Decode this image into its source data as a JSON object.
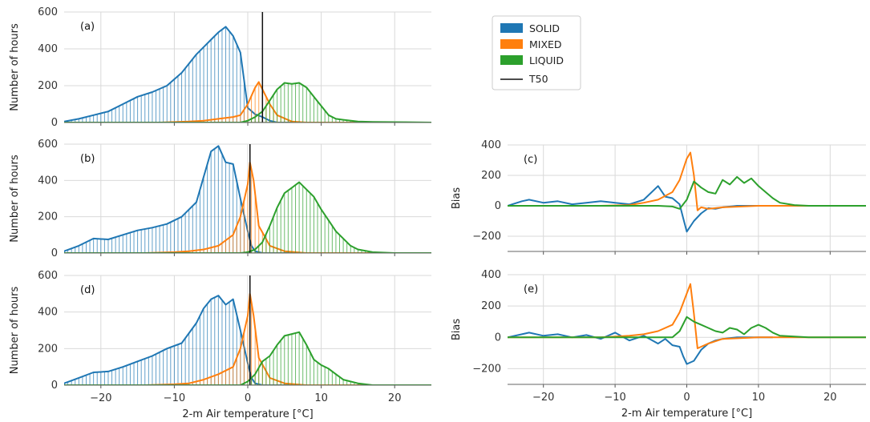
{
  "colors": {
    "solid": "#1f77b4",
    "mixed": "#ff7f0e",
    "liquid": "#2ca02c",
    "t50": "#111111",
    "grid": "#d9d9d9"
  },
  "legend": [
    "SOLID",
    "MIXED",
    "LIQUID",
    "T50"
  ],
  "chart_data": [
    {
      "panel": "(a)",
      "type": "area",
      "ylabel": "Number of hours",
      "xlabel": "",
      "xlim": [
        -25,
        25
      ],
      "ylim": [
        0,
        600
      ],
      "xticks": [
        "−20",
        "−10",
        "0",
        "10",
        "20"
      ],
      "show_xticklabels": false,
      "yticks": [
        "0",
        "200",
        "400",
        "600"
      ],
      "t50": 2,
      "series": [
        {
          "name": "SOLID",
          "x": [
            -25,
            -23,
            -21,
            -19,
            -17,
            -15,
            -13,
            -11,
            -9,
            -7,
            -5,
            -4,
            -3,
            -2,
            -1,
            0,
            1,
            2,
            3,
            4
          ],
          "values": [
            5,
            20,
            40,
            60,
            100,
            140,
            165,
            200,
            270,
            370,
            450,
            490,
            520,
            470,
            380,
            80,
            45,
            30,
            10,
            0
          ]
        },
        {
          "name": "MIXED",
          "x": [
            -12,
            -8,
            -6,
            -4,
            -2,
            -1,
            0,
            1,
            1.5,
            2,
            3,
            4,
            6,
            8
          ],
          "values": [
            0,
            5,
            10,
            20,
            30,
            40,
            100,
            190,
            220,
            180,
            100,
            40,
            5,
            0
          ]
        },
        {
          "name": "LIQUID",
          "x": [
            -1,
            0,
            1,
            2,
            3,
            4,
            5,
            6,
            7,
            8,
            9,
            10,
            11,
            12,
            13,
            15,
            17,
            20,
            25
          ],
          "values": [
            0,
            10,
            30,
            60,
            120,
            180,
            215,
            210,
            215,
            190,
            140,
            90,
            40,
            20,
            15,
            5,
            3,
            2,
            0
          ]
        }
      ]
    },
    {
      "panel": "(b)",
      "type": "area",
      "ylabel": "Number of hours",
      "xlabel": "",
      "xlim": [
        -25,
        25
      ],
      "ylim": [
        0,
        600
      ],
      "xticks": [
        "−20",
        "−10",
        "0",
        "10",
        "20"
      ],
      "show_xticklabels": false,
      "yticks": [
        "0",
        "200",
        "400",
        "600"
      ],
      "t50": 0.3,
      "series": [
        {
          "name": "SOLID",
          "x": [
            -25,
            -23,
            -21,
            -19,
            -17,
            -15,
            -13,
            -11,
            -9,
            -7,
            -6,
            -5,
            -4,
            -3,
            -2,
            -1,
            0,
            0.5,
            1,
            2
          ],
          "values": [
            10,
            40,
            80,
            75,
            100,
            125,
            140,
            160,
            200,
            280,
            420,
            560,
            590,
            500,
            490,
            300,
            120,
            40,
            10,
            0
          ]
        },
        {
          "name": "MIXED",
          "x": [
            -14,
            -10,
            -8,
            -6,
            -4,
            -2,
            -1,
            0,
            0.3,
            0.8,
            1.5,
            3,
            5,
            8
          ],
          "values": [
            0,
            5,
            10,
            20,
            40,
            100,
            200,
            380,
            500,
            400,
            150,
            40,
            10,
            0
          ]
        },
        {
          "name": "LIQUID",
          "x": [
            -1,
            0,
            1,
            2,
            3,
            4,
            5,
            6,
            7,
            8,
            9,
            10,
            11,
            12,
            13,
            14,
            15,
            17,
            20
          ],
          "values": [
            0,
            5,
            20,
            60,
            150,
            250,
            330,
            360,
            390,
            350,
            310,
            240,
            180,
            120,
            80,
            40,
            20,
            5,
            0
          ]
        }
      ]
    },
    {
      "panel": "(c)",
      "type": "line",
      "ylabel": "Bias",
      "xlabel": "",
      "xlim": [
        -25,
        25
      ],
      "ylim": [
        -300,
        400
      ],
      "xticks": [
        "−20",
        "−10",
        "0",
        "10",
        "20"
      ],
      "show_xticklabels": false,
      "yticks": [
        "−200",
        "0",
        "200",
        "400"
      ],
      "series": [
        {
          "name": "SOLID",
          "x": [
            -25,
            -23,
            -22,
            -20,
            -18,
            -16,
            -14,
            -12,
            -10,
            -8,
            -6,
            -4,
            -3,
            -2,
            -1,
            -0.5,
            0,
            1,
            2,
            3,
            4,
            5,
            7,
            9,
            12
          ],
          "values": [
            0,
            30,
            40,
            20,
            30,
            10,
            20,
            30,
            20,
            10,
            40,
            130,
            60,
            50,
            10,
            -80,
            -170,
            -100,
            -50,
            -15,
            -20,
            -10,
            0,
            0,
            0
          ]
        },
        {
          "name": "MIXED",
          "x": [
            -25,
            -12,
            -8,
            -6,
            -4,
            -2,
            -1,
            0,
            0.5,
            1,
            1.5,
            2,
            3,
            5,
            10,
            25
          ],
          "values": [
            0,
            0,
            5,
            20,
            40,
            90,
            170,
            310,
            350,
            200,
            -30,
            -10,
            -20,
            -10,
            0,
            0
          ]
        },
        {
          "name": "LIQUID",
          "x": [
            -25,
            -10,
            -4,
            -2,
            -1,
            0,
            1,
            2,
            3,
            4,
            5,
            6,
            7,
            8,
            9,
            10,
            11,
            12,
            13,
            15,
            17,
            20,
            25
          ],
          "values": [
            0,
            0,
            0,
            -5,
            -20,
            40,
            160,
            120,
            90,
            80,
            170,
            140,
            190,
            150,
            180,
            130,
            90,
            50,
            20,
            5,
            0,
            0,
            0
          ]
        }
      ]
    },
    {
      "panel": "(d)",
      "type": "area",
      "ylabel": "Number of hours",
      "xlabel": "2-m Air temperature [°C]",
      "xlim": [
        -25,
        25
      ],
      "ylim": [
        0,
        600
      ],
      "xticks": [
        "−20",
        "−10",
        "0",
        "10",
        "20"
      ],
      "show_xticklabels": true,
      "yticks": [
        "0",
        "200",
        "400",
        "600"
      ],
      "t50": 0.3,
      "series": [
        {
          "name": "SOLID",
          "x": [
            -25,
            -23,
            -21,
            -19,
            -17,
            -15,
            -13,
            -11,
            -9,
            -7,
            -6,
            -5,
            -4,
            -3,
            -2,
            -1,
            0,
            0.5,
            1,
            2
          ],
          "values": [
            10,
            40,
            70,
            75,
            100,
            130,
            160,
            200,
            230,
            340,
            420,
            470,
            490,
            440,
            470,
            300,
            120,
            40,
            10,
            0
          ]
        },
        {
          "name": "MIXED",
          "x": [
            -14,
            -10,
            -8,
            -6,
            -4,
            -2,
            -1,
            0,
            0.3,
            0.8,
            1.5,
            3,
            5,
            8
          ],
          "values": [
            0,
            5,
            10,
            30,
            60,
            100,
            200,
            380,
            500,
            380,
            150,
            40,
            10,
            0
          ]
        },
        {
          "name": "LIQUID",
          "x": [
            -1,
            0,
            1,
            2,
            3,
            4,
            5,
            6,
            7,
            8,
            9,
            10,
            11,
            12,
            13,
            15,
            17,
            20
          ],
          "values": [
            0,
            20,
            60,
            130,
            160,
            220,
            270,
            280,
            290,
            220,
            140,
            110,
            90,
            60,
            30,
            10,
            0,
            0
          ]
        }
      ]
    },
    {
      "panel": "(e)",
      "type": "line",
      "ylabel": "Bias",
      "xlabel": "2-m Air temperature [°C]",
      "xlim": [
        -25,
        25
      ],
      "ylim": [
        -300,
        400
      ],
      "xticks": [
        "−20",
        "−10",
        "0",
        "10",
        "20"
      ],
      "show_xticklabels": true,
      "yticks": [
        "−200",
        "0",
        "200",
        "400"
      ],
      "series": [
        {
          "name": "SOLID",
          "x": [
            -25,
            -23,
            -22,
            -20,
            -18,
            -16,
            -14,
            -12,
            -10,
            -8,
            -6,
            -4,
            -3,
            -2,
            -1,
            -0.5,
            0,
            1,
            2,
            3,
            4,
            5,
            7,
            9,
            12
          ],
          "values": [
            0,
            20,
            30,
            10,
            20,
            0,
            15,
            -10,
            30,
            -20,
            10,
            -40,
            -10,
            -50,
            -60,
            -120,
            -170,
            -150,
            -80,
            -40,
            -20,
            -10,
            0,
            0,
            0
          ]
        },
        {
          "name": "MIXED",
          "x": [
            -25,
            -12,
            -8,
            -6,
            -4,
            -2,
            -1,
            0,
            0.5,
            1,
            1.5,
            2,
            3,
            5,
            10,
            25
          ],
          "values": [
            0,
            0,
            10,
            20,
            40,
            80,
            160,
            280,
            340,
            150,
            -70,
            -60,
            -40,
            -10,
            0,
            0
          ]
        },
        {
          "name": "LIQUID",
          "x": [
            -25,
            -10,
            -4,
            -2,
            -1,
            0,
            1,
            2,
            3,
            4,
            5,
            6,
            7,
            8,
            9,
            10,
            11,
            12,
            13,
            15,
            17,
            20,
            25
          ],
          "values": [
            0,
            0,
            0,
            0,
            40,
            130,
            100,
            80,
            60,
            40,
            30,
            60,
            50,
            20,
            60,
            80,
            60,
            30,
            10,
            5,
            0,
            0,
            0
          ]
        }
      ]
    }
  ]
}
